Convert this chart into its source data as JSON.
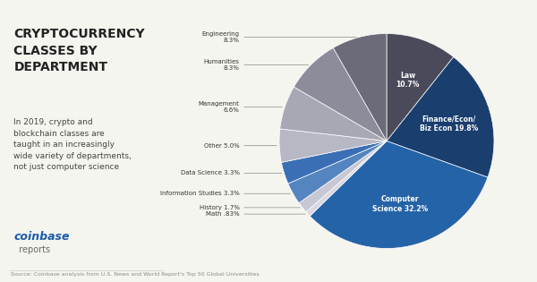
{
  "title": "CRYPTOCURRENCY\nCLASSES BY\nDEPARTMENT",
  "subtitle": "In 2019, crypto and\nblockchain classes are\ntaught in an increasingly\nwide variety of departments,\nnot just computer science",
  "source": "Source: Coinbase analysis from U.S. News and World Report's Top 50 Global Universities",
  "labels": [
    "Computer\nScience 32.2%",
    "Finance/Econ/\nBiz Econ 19.8%",
    "Law\n10.7%",
    "Engineering\n8.3%",
    "Humanities\n8.3%",
    "Management\n6.6%",
    "Other 5.0%",
    "Data Science 3.3%",
    "Information Studies 3.3%",
    "History 1.7%",
    "Math .83%"
  ],
  "values": [
    32.2,
    19.8,
    10.7,
    8.3,
    8.3,
    6.6,
    5.0,
    3.3,
    3.3,
    1.7,
    0.83
  ],
  "colors": [
    "#2563a8",
    "#1a3e6e",
    "#4a4a5a",
    "#6b6b7a",
    "#8c8c9a",
    "#a8a8b5",
    "#b8b8c5",
    "#3a6fb5",
    "#5585c0",
    "#c8c8d5",
    "#d8d8e2"
  ],
  "bg_color": "#f5f5f0",
  "text_color": "#222222",
  "coinbase_blue": "#1a5caa"
}
